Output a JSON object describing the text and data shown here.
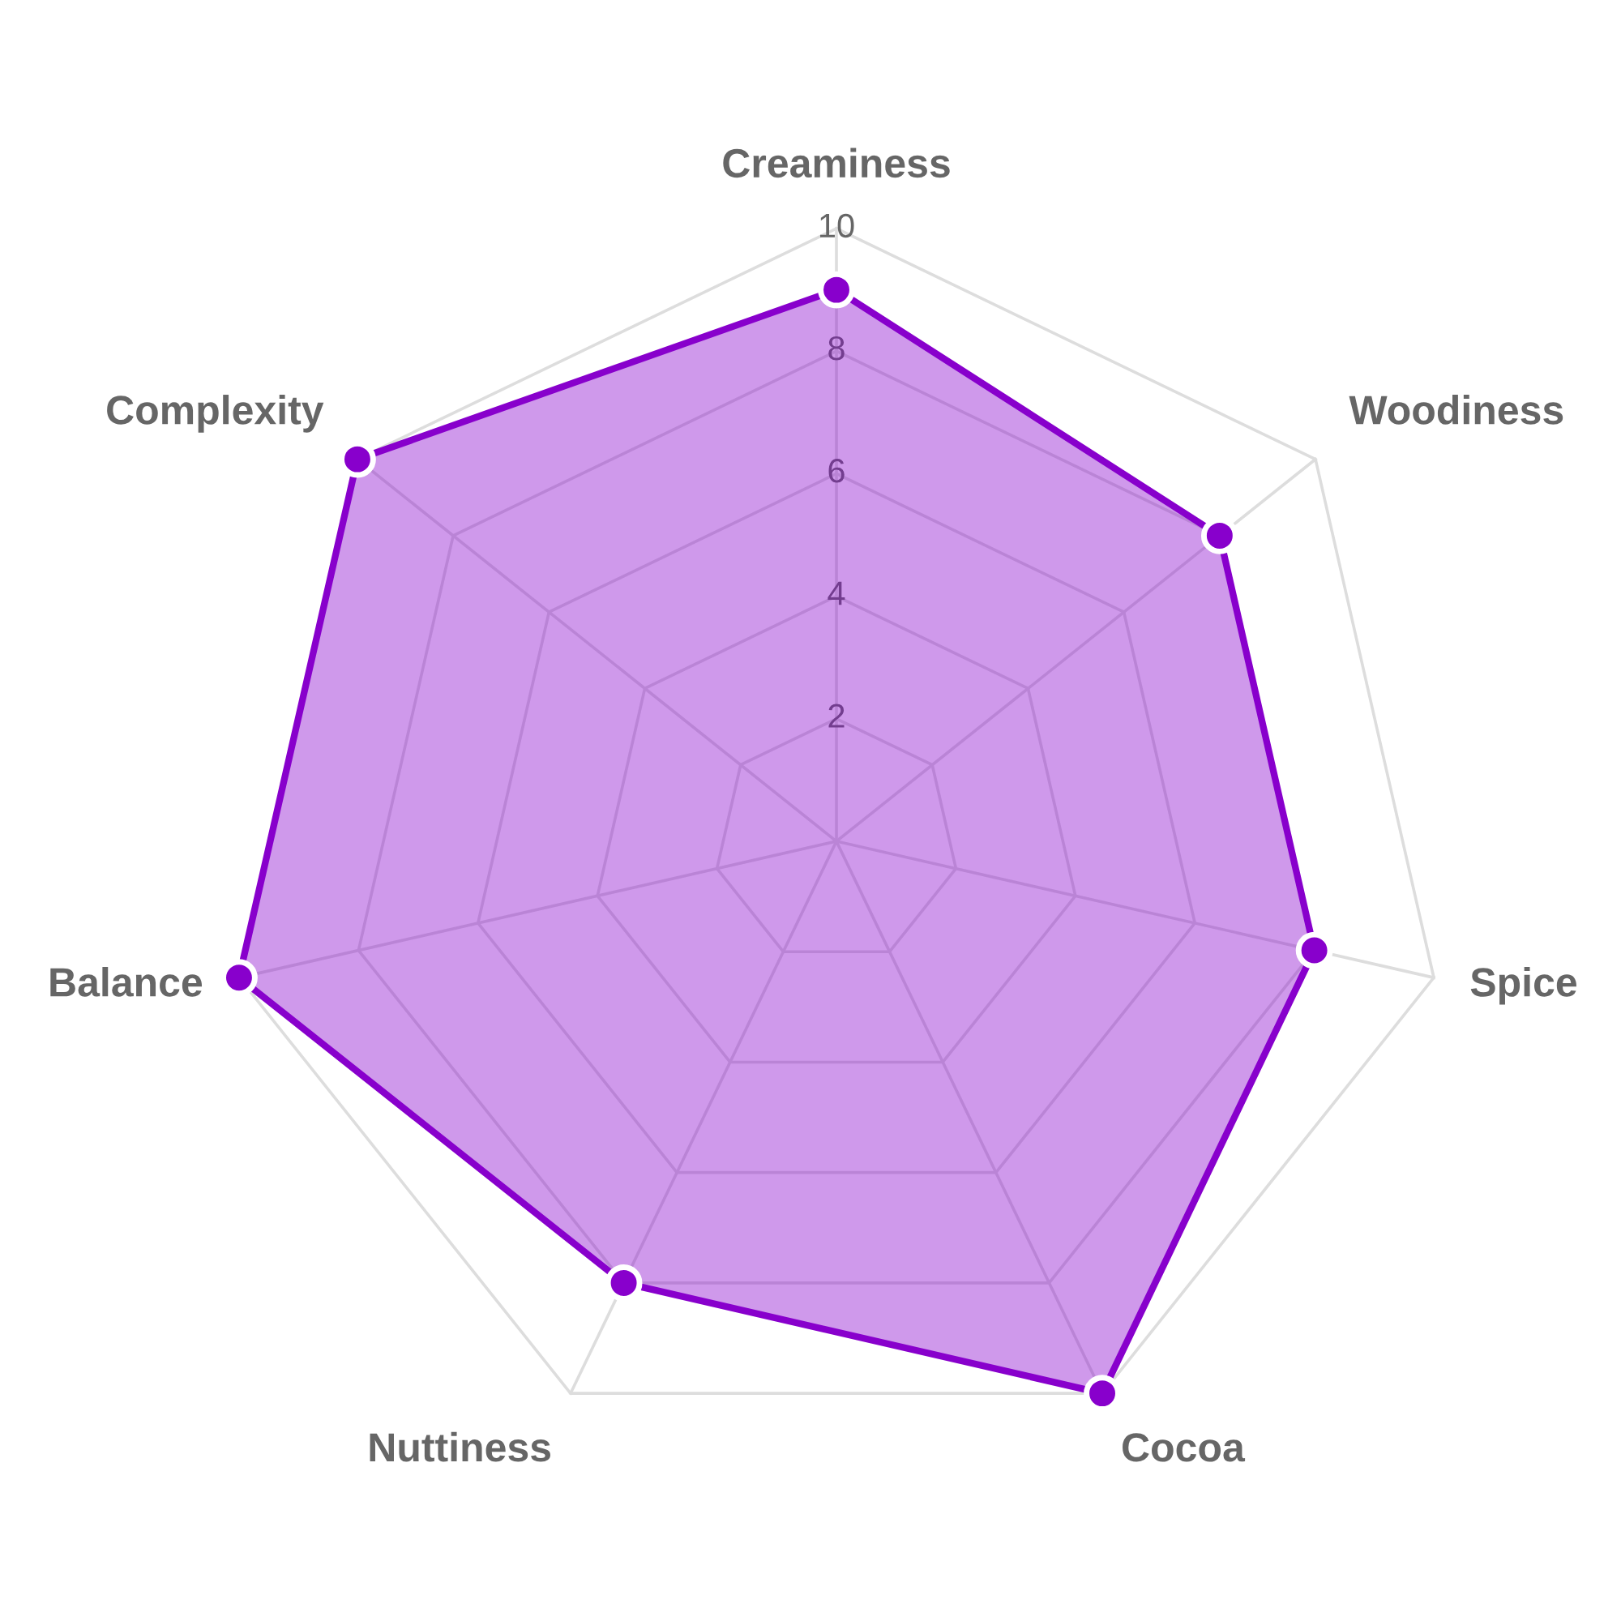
{
  "chart_data": {
    "type": "radar",
    "categories": [
      "Creaminess",
      "Woodiness",
      "Spice",
      "Cocoa",
      "Nuttiness",
      "Balance",
      "Complexity"
    ],
    "series": [
      {
        "color": "#8800cc",
        "values": [
          9,
          8,
          8,
          10,
          8,
          10,
          10
        ]
      }
    ],
    "ylim": [
      0,
      10
    ],
    "yticks": [
      2,
      4,
      6,
      8,
      10
    ],
    "grid": true,
    "marker": "circle",
    "line_style": "solid"
  }
}
